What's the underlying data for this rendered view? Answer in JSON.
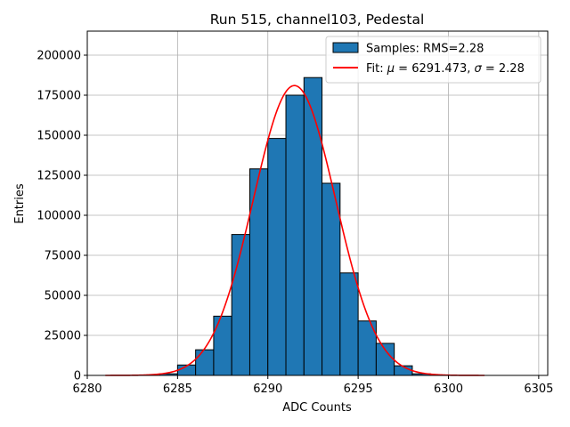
{
  "chart_data": {
    "type": "bar",
    "title": "Run 515, channel103, Pedestal",
    "xlabel": "ADC Counts",
    "ylabel": "Entries",
    "xlim": [
      6280,
      6305.5
    ],
    "ylim": [
      0,
      215000
    ],
    "grid": true,
    "x_ticks": [
      6280,
      6285,
      6290,
      6295,
      6300,
      6305
    ],
    "y_ticks": [
      0,
      25000,
      50000,
      75000,
      100000,
      125000,
      150000,
      175000,
      200000
    ],
    "legend_position": "top-right",
    "histogram": {
      "name": "Samples: RMS=2.28",
      "color": "#1f77b4",
      "edgecolor": "#000000",
      "bin_width": 1,
      "bin_edges_start": [
        6284,
        6285,
        6286,
        6287,
        6288,
        6289,
        6290,
        6291,
        6292,
        6293,
        6294,
        6295,
        6296,
        6297,
        6298
      ],
      "values": [
        1000,
        6500,
        16000,
        37000,
        88000,
        129000,
        148000,
        175000,
        186000,
        120000,
        64000,
        34000,
        20000,
        6000,
        1000
      ]
    },
    "fit": {
      "name": "Fit: μ = 6291.473, σ = 2.28",
      "name_parts": [
        "Fit: ",
        "μ",
        " = 6291.473, ",
        "σ",
        " = 2.28"
      ],
      "color": "#ff0000",
      "mu": 6291.473,
      "sigma": 2.28,
      "amplitude": 181000,
      "x_range": [
        6281,
        6302
      ]
    }
  }
}
